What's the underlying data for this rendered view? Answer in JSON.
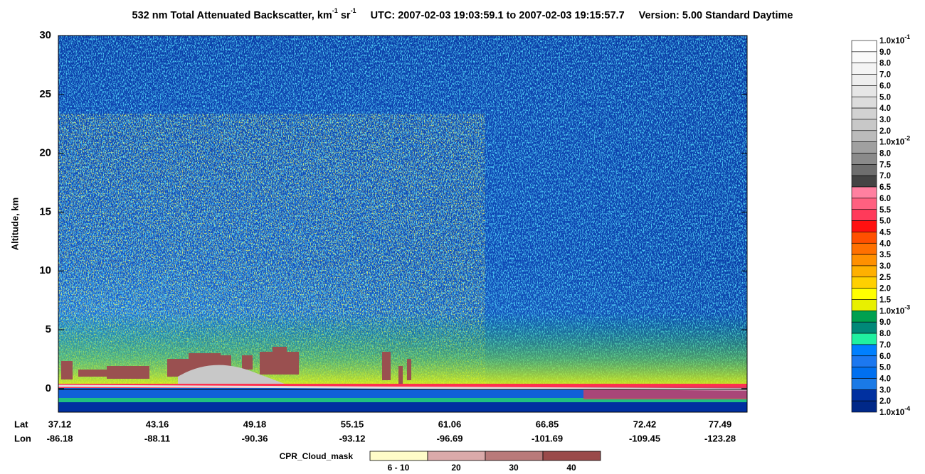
{
  "chart_data": {
    "type": "curtain",
    "title": {
      "product": "532 nm Total Attenuated Backscatter, km",
      "unit_exp_1": "-1",
      "unit_sr": " sr",
      "unit_exp_2": "-1",
      "utc": "UTC:  2007-02-03 19:03:59.1  to  2007-02-03 19:15:57.7",
      "version": "Version: 5.00  Standard  Daytime"
    },
    "y_label": "Altitude, km",
    "ylim": [
      -2,
      30
    ],
    "yticks": [
      0,
      5,
      10,
      15,
      20,
      25,
      30
    ],
    "x_axis": {
      "lat_label": "Lat",
      "lon_label": "Lon",
      "lat": [
        "37.12",
        "43.16",
        "49.18",
        "55.15",
        "61.06",
        "66.85",
        "72.42",
        "77.49"
      ],
      "lon": [
        "-86.18",
        "-88.11",
        "-90.36",
        "-93.12",
        "-96.69",
        "-101.69",
        "-109.45",
        "-123.28"
      ]
    },
    "colorbar": {
      "labels": [
        {
          "mantissa": "1.0x10",
          "exponent": "-1"
        },
        "9.0",
        "8.0",
        "7.0",
        "6.0",
        "5.0",
        "4.0",
        "3.0",
        "2.0",
        {
          "mantissa": "1.0x10",
          "exponent": "-2"
        },
        "8.0",
        "7.5",
        "7.0",
        "6.5",
        "6.0",
        "5.5",
        "5.0",
        "4.5",
        "4.0",
        "3.5",
        "3.0",
        "2.5",
        "2.0",
        "1.5",
        {
          "mantissa": "1.0x10",
          "exponent": "-3"
        },
        "9.0",
        "8.0",
        "7.0",
        "6.0",
        "5.0",
        "4.0",
        "3.0",
        "2.0",
        {
          "mantissa": "1.0x10",
          "exponent": "-4"
        }
      ],
      "colors": [
        "#ffffff",
        "#fafafa",
        "#f4f4f4",
        "#eeeeee",
        "#e6e6e6",
        "#dcdcdc",
        "#d2d2d2",
        "#c8c8c8",
        "#bbbbbb",
        "#a0a0a0",
        "#8a8a8a",
        "#6e6e6e",
        "#444444",
        "#ff80a0",
        "#ff6080",
        "#ff3a5a",
        "#ff1010",
        "#ff5000",
        "#ff7000",
        "#ff9000",
        "#ffb000",
        "#ffd000",
        "#ffff00",
        "#e8f000",
        "#00a050",
        "#008878",
        "#20f0a0",
        "#0080ff",
        "#1c78f0",
        "#0070f0",
        "#1a7ae6",
        "#0030a0",
        "#002888"
      ]
    },
    "cpr_legend": {
      "label": "CPR_Cloud_mask",
      "items": [
        {
          "label": "6 - 10",
          "color": "#fffcc8"
        },
        {
          "label": "20",
          "color": "#dbaaaa"
        },
        {
          "label": "30",
          "color": "#b97a7a"
        },
        {
          "label": "40",
          "color": "#9a4a4a"
        }
      ]
    }
  }
}
